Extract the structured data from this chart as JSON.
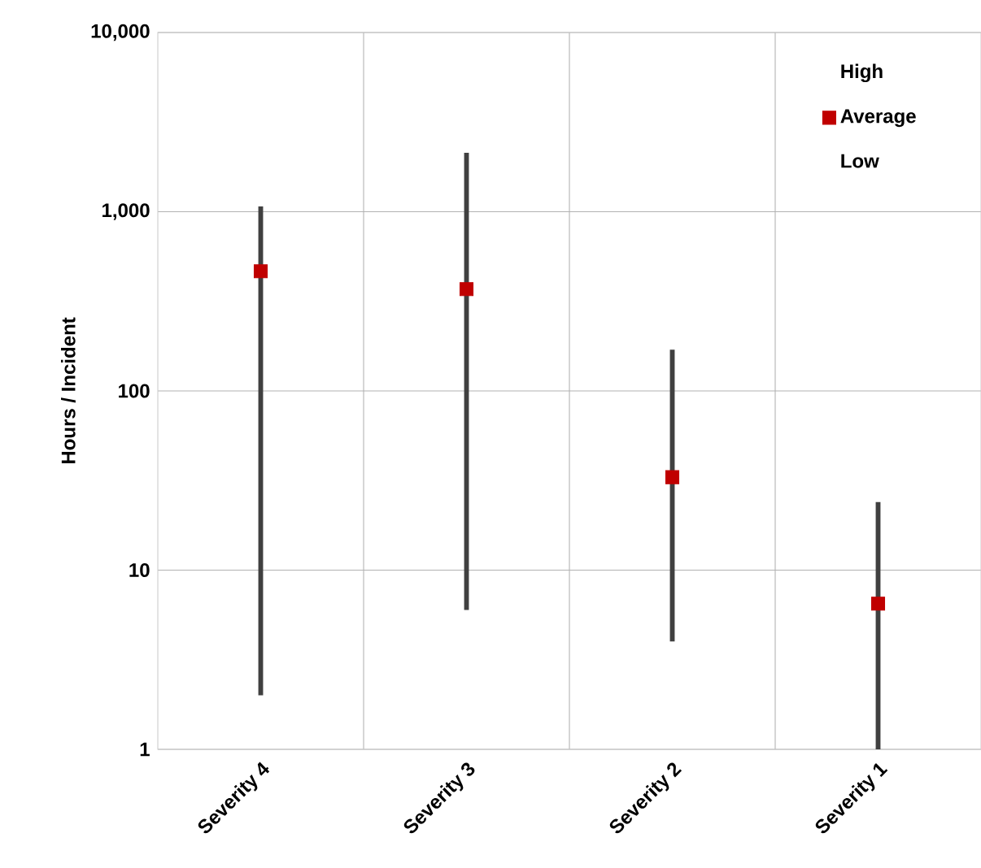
{
  "chart_data": {
    "type": "scatter",
    "ylabel": "Hours / Incident",
    "categories": [
      "Severity 4",
      "Severity 3",
      "Severity 2",
      "Severity 1"
    ],
    "series": [
      {
        "name": "Average",
        "color": "#c00000",
        "values": [
          465,
          370,
          33,
          6.5
        ],
        "errors": [
          [
            2,
            1070
          ],
          [
            6,
            2130
          ],
          [
            4,
            170
          ],
          [
            1,
            24
          ]
        ],
        "marker": "square"
      }
    ],
    "annotations": [
      "High",
      "Low"
    ],
    "log": true,
    "ylim": [
      1,
      10000
    ],
    "yticks": [
      {
        "value": 1,
        "label": "1"
      },
      {
        "value": 10,
        "label": "10"
      },
      {
        "value": 100,
        "label": "100"
      },
      {
        "value": 1000,
        "label": "1,000"
      },
      {
        "value": 10000,
        "label": "10,000"
      }
    ],
    "grid": true,
    "legend": "top right"
  }
}
